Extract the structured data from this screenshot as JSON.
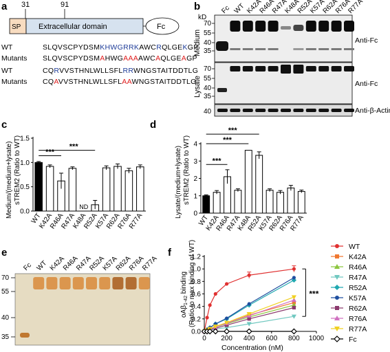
{
  "panels": {
    "a": {
      "label": "a",
      "pos_start": "31",
      "pos_end": "91",
      "sp": "SP",
      "domain": "Extracellular domain",
      "fc": "Fc",
      "rows": [
        {
          "label": "WT",
          "segs": [
            [
              "SLQVSCPYDSM",
              "k"
            ],
            [
              "KHWGRRK",
              "b"
            ],
            [
              "AWC",
              "k"
            ],
            [
              "R",
              "b"
            ],
            [
              "QLGE",
              "k"
            ],
            [
              "K",
              "b"
            ],
            [
              "GP",
              "k"
            ]
          ]
        },
        {
          "label": "Mutants",
          "segs": [
            [
              "SLQVSCPYDSM",
              "k"
            ],
            [
              "A",
              "r"
            ],
            [
              "HWG",
              "k"
            ],
            [
              "AAA",
              "r"
            ],
            [
              "AWC",
              "k"
            ],
            [
              "A",
              "r"
            ],
            [
              "QLGE",
              "k"
            ],
            [
              "A",
              "r"
            ],
            [
              "GP",
              "k"
            ]
          ]
        },
        {
          "label": "WT",
          "segs": [
            [
              "CQ",
              "k"
            ],
            [
              "R",
              "b"
            ],
            [
              "VVSTHNLWLLSFL",
              "k"
            ],
            [
              "RR",
              "b"
            ],
            [
              "WNGSTAITDDTLG",
              "k"
            ]
          ]
        },
        {
          "label": "Mutants",
          "segs": [
            [
              "CQ",
              "k"
            ],
            [
              "A",
              "r"
            ],
            [
              "VVSTHNLWLLSFL",
              "k"
            ],
            [
              "AA",
              "r"
            ],
            [
              "WNGSTAITDDTLG",
              "k"
            ]
          ]
        }
      ]
    },
    "b": {
      "label": "b",
      "kd": "kD",
      "lanes": [
        "Fc",
        "WT",
        "K42A",
        "R46A",
        "R47A",
        "K48A",
        "R52A",
        "K57A",
        "R62A",
        "R76A",
        "R77A"
      ],
      "medium_label": "Medium",
      "lysate_label": "Lysate",
      "medium_markers": [
        "70",
        "55",
        "40",
        "35"
      ],
      "lysate_markers": [
        "70",
        "55",
        "40",
        "35"
      ],
      "actin_marker": "40",
      "anti_fc": "Anti-Fc",
      "anti_fc2": "Anti-Fc",
      "anti_actin": "Anti-β-Actin"
    },
    "c": {
      "label": "c",
      "ylabel": "Medium/(medium+lysate) sTREM2 (Ratio to WT)",
      "ticks": [
        "0.0",
        "0.5",
        "1.0",
        "1.5"
      ],
      "categories": [
        "WT",
        "K42A",
        "R46A",
        "R47A",
        "K48A",
        "R52A",
        "K57A",
        "R62A",
        "R76A",
        "R77A"
      ],
      "nd": "ND",
      "sig1": "***",
      "sig2": "***"
    },
    "d": {
      "label": "d",
      "ylabel": "Lysate/(medium+lysate) sTREM2 (Ratio to WT)",
      "ticks": [
        "0",
        "1",
        "2",
        "3",
        "4"
      ],
      "categories": [
        "WT",
        "K42A",
        "R46A",
        "R47A",
        "K48A",
        "R52A",
        "K57A",
        "R62A",
        "R76A",
        "R77A"
      ],
      "sig1": "***",
      "sig2": "***",
      "sig3": "***"
    },
    "e": {
      "label": "e",
      "lanes": [
        "Fc",
        "WT",
        "K42A",
        "R46A",
        "R47A",
        "R52A",
        "K57A",
        "R62A",
        "R76A",
        "R77A"
      ],
      "markers": [
        "70",
        "55",
        "40",
        "35"
      ]
    },
    "f": {
      "label": "f",
      "ylabel_top": "oAβ",
      "ylabel_sub": "1-42",
      "ylabel_rest": " binding",
      "ylabel2": "(Ratio to max binding of WT)",
      "xlabel": "Concentration (nM)",
      "xticks": [
        "0",
        "200",
        "400",
        "600",
        "800",
        "1000"
      ],
      "yticks": [
        "0.0",
        "0.2",
        "0.4",
        "0.6",
        "0.8",
        "1.0",
        "1.2"
      ],
      "sig": "***",
      "legend": [
        "WT",
        "K42A",
        "R46A",
        "R47A",
        "R52A",
        "K57A",
        "R62A",
        "R76A",
        "R77A",
        "Fc"
      ]
    }
  },
  "colors": {
    "blue": "#1f3d99",
    "red": "#e02020",
    "domain_fill": "#d6e2ef",
    "sp_fill": "#f8dcc0"
  },
  "chart_data": [
    {
      "type": "bar",
      "title": "",
      "ylabel": "Medium/(medium+lysate) sTREM2 (Ratio to WT)",
      "categories": [
        "WT",
        "K42A",
        "R46A",
        "R47A",
        "K48A",
        "R52A",
        "K57A",
        "R62A",
        "R76A",
        "R77A"
      ],
      "values": [
        1.0,
        0.92,
        0.62,
        0.88,
        0,
        0.13,
        0.89,
        0.92,
        0.83,
        0.91
      ],
      "errors": [
        0.02,
        0.03,
        0.16,
        0.03,
        0,
        0.09,
        0.04,
        0.05,
        0.05,
        0.04
      ],
      "ylim": [
        0,
        1.5
      ]
    },
    {
      "type": "bar",
      "title": "",
      "ylabel": "Lysate/(medium+lysate) sTREM2 (Ratio to WT)",
      "categories": [
        "WT",
        "K42A",
        "R46A",
        "R47A",
        "K48A",
        "R52A",
        "K57A",
        "R62A",
        "R76A",
        "R77A"
      ],
      "values": [
        1.0,
        1.2,
        2.1,
        1.32,
        3.62,
        3.33,
        1.32,
        1.2,
        1.45,
        1.25
      ],
      "errors": [
        0.05,
        0.1,
        0.4,
        0.08,
        0.0,
        0.2,
        0.08,
        0.1,
        0.15,
        0.08
      ],
      "ylim": [
        0,
        4
      ]
    },
    {
      "type": "line",
      "xlabel": "Concentration (nM)",
      "ylabel": "oAβ1-42 binding (Ratio to max binding of WT)",
      "x": [
        0,
        25,
        50,
        100,
        200,
        400,
        800
      ],
      "xlim": [
        0,
        1000
      ],
      "ylim": [
        0,
        1.2
      ],
      "series": [
        {
          "name": "WT",
          "color": "#e03030",
          "marker": "circle",
          "values": [
            0,
            0.22,
            0.42,
            0.6,
            0.76,
            0.9,
            1.0
          ]
        },
        {
          "name": "K42A",
          "color": "#f07830",
          "marker": "square",
          "values": [
            0,
            0.02,
            0.04,
            0.08,
            0.13,
            0.26,
            0.46
          ]
        },
        {
          "name": "R46A",
          "color": "#8cc63f",
          "marker": "triangle",
          "values": [
            0,
            0.02,
            0.04,
            0.07,
            0.12,
            0.23,
            0.42
          ]
        },
        {
          "name": "R47A",
          "color": "#70c8c0",
          "marker": "triangle-down",
          "values": [
            0,
            0.01,
            0.02,
            0.04,
            0.06,
            0.12,
            0.24
          ]
        },
        {
          "name": "R52A",
          "color": "#20a8b0",
          "marker": "diamond",
          "values": [
            0,
            0.03,
            0.06,
            0.12,
            0.2,
            0.42,
            0.82
          ]
        },
        {
          "name": "K57A",
          "color": "#1f4f9f",
          "marker": "circle",
          "values": [
            0,
            0.03,
            0.06,
            0.12,
            0.21,
            0.44,
            0.86
          ]
        },
        {
          "name": "R62A",
          "color": "#8b3a6e",
          "marker": "square",
          "values": [
            0,
            0.01,
            0.03,
            0.05,
            0.1,
            0.2,
            0.38
          ]
        },
        {
          "name": "R76A",
          "color": "#d070c0",
          "marker": "triangle",
          "values": [
            0,
            0.02,
            0.04,
            0.07,
            0.13,
            0.25,
            0.5
          ]
        },
        {
          "name": "R77A",
          "color": "#f0d020",
          "marker": "triangle-down",
          "values": [
            0,
            0.02,
            0.04,
            0.08,
            0.14,
            0.28,
            0.55
          ]
        },
        {
          "name": "Fc",
          "color": "#000000",
          "marker": "diamond-open",
          "values": [
            0,
            0.0,
            0.0,
            0.0,
            0.0,
            0.0,
            0.0
          ]
        }
      ]
    }
  ]
}
